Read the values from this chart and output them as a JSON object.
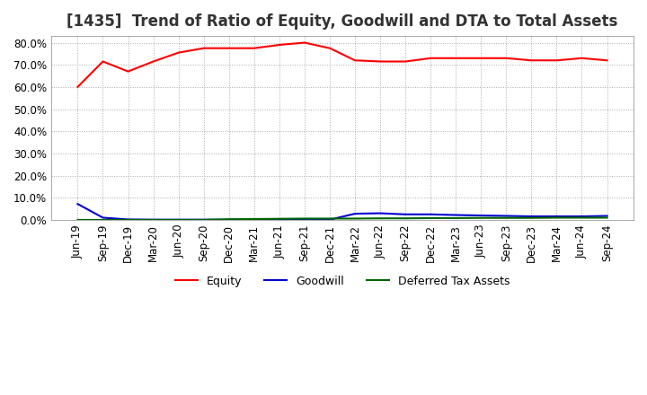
{
  "title": "[1435]  Trend of Ratio of Equity, Goodwill and DTA to Total Assets",
  "x_labels": [
    "Jun-19",
    "Sep-19",
    "Dec-19",
    "Mar-20",
    "Jun-20",
    "Sep-20",
    "Dec-20",
    "Mar-21",
    "Jun-21",
    "Sep-21",
    "Dec-21",
    "Mar-22",
    "Jun-22",
    "Sep-22",
    "Dec-22",
    "Mar-23",
    "Jun-23",
    "Sep-23",
    "Dec-23",
    "Mar-24",
    "Jun-24",
    "Sep-24"
  ],
  "equity": [
    0.6,
    0.715,
    0.67,
    0.715,
    0.755,
    0.775,
    0.775,
    0.775,
    0.79,
    0.8,
    0.775,
    0.72,
    0.715,
    0.715,
    0.73,
    0.73,
    0.73,
    0.73,
    0.72,
    0.72,
    0.73,
    0.72
  ],
  "goodwill": [
    0.072,
    0.01,
    0.002,
    0.001,
    0.001,
    0.001,
    0.001,
    0.001,
    0.001,
    0.001,
    0.001,
    0.028,
    0.03,
    0.025,
    0.025,
    0.022,
    0.02,
    0.018,
    0.016,
    0.016,
    0.016,
    0.018
  ],
  "dta": [
    0.0,
    0.0,
    0.0,
    0.0,
    0.0,
    0.0,
    0.003,
    0.004,
    0.005,
    0.006,
    0.006,
    0.006,
    0.007,
    0.007,
    0.008,
    0.008,
    0.009,
    0.009,
    0.009,
    0.01,
    0.01,
    0.01
  ],
  "equity_color": "#FF0000",
  "goodwill_color": "#0000CC",
  "dta_color": "#006600",
  "ylim": [
    0.0,
    0.83
  ],
  "yticks": [
    0.0,
    0.1,
    0.2,
    0.3,
    0.4,
    0.5,
    0.6,
    0.7,
    0.8
  ],
  "background_color": "#FFFFFF",
  "grid_color": "#AAAAAA",
  "title_fontsize": 12
}
